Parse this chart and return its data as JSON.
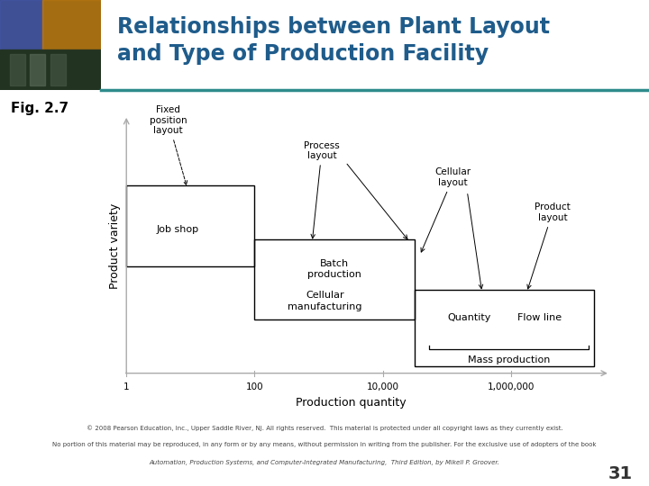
{
  "title": "Relationships between Plant Layout\nand Type of Production Facility",
  "fig_label": "Fig. 2.7",
  "xlabel": "Production quantity",
  "ylabel": "Product variety",
  "xtick_labels": [
    "1",
    "100",
    "10,000",
    "1,000,000"
  ],
  "title_color": "#1F5C8B",
  "title_fontsize": 17,
  "separator_color": "#2E8B8B",
  "footer_text1": "© 2008 Pearson Education, Inc., Upper Saddle River, NJ. All rights reserved.  This material is protected under all copyright laws as they currently exist.",
  "footer_text2": "No portion of this material may be reproduced, in any form or by any means, without permission in writing from the publisher. For the exclusive use of adopters of the book",
  "footer_italic": "Automation, Production Systems, and Computer-Integrated Manufacturing,  Third Edition, by Mikell P. Groover.",
  "page_number": "31",
  "bg_color": "#ffffff",
  "text_color": "#000000",
  "axis_color": "#aaaaaa"
}
